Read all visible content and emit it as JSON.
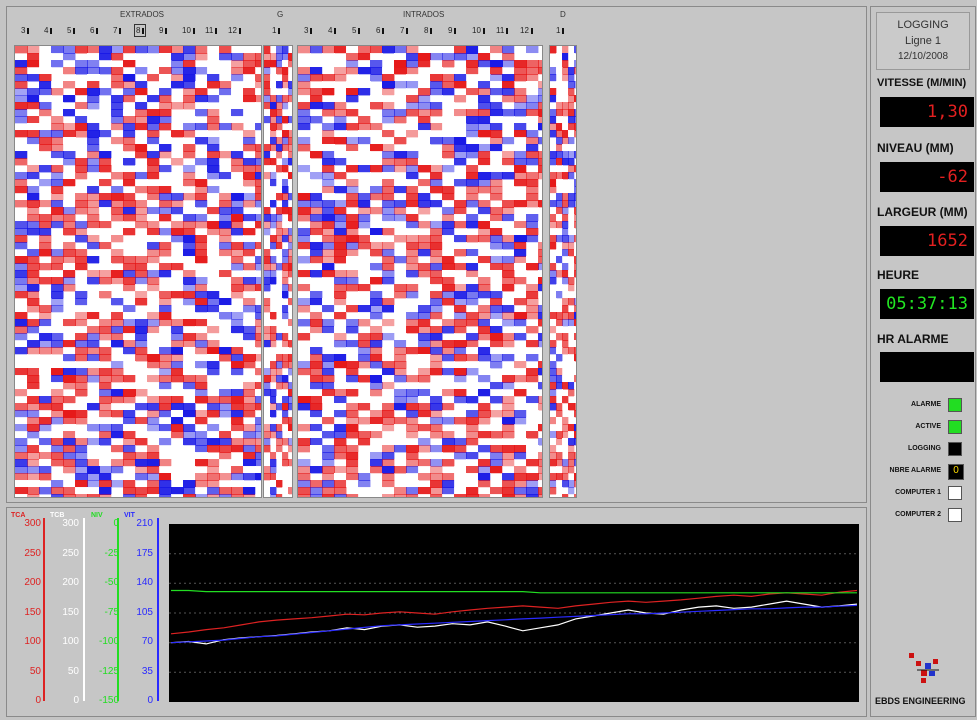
{
  "colors": {
    "tca": "#dd2222",
    "tcb": "#ffffff",
    "niv": "#22dd22",
    "vit": "#2a2aff",
    "lcd_red": "#e32020",
    "lcd_green": "#22e522",
    "chart_bg": "#000000"
  },
  "header": {
    "extrados_title": "EXTRADOS",
    "g_title": "G",
    "intrados_title": "INTRADOS",
    "d_title": "D",
    "extrados_ticks": [
      "3",
      "4",
      "5",
      "6",
      "7",
      "8",
      "9",
      "10",
      "11",
      "12"
    ],
    "g_ticks": [
      "1"
    ],
    "intrados_ticks": [
      "3",
      "4",
      "5",
      "6",
      "7",
      "8",
      "9",
      "10",
      "11",
      "12"
    ],
    "d_ticks": [
      "1"
    ],
    "selected_tick": "8"
  },
  "info": {
    "title": "LOGGING",
    "line": "Ligne 1",
    "date": "12/10/2008"
  },
  "fields": {
    "vitesse_label": "VITESSE (M/MIN)",
    "vitesse_value": "1,30",
    "niveau_label": "NIVEAU (MM)",
    "niveau_value": "-62",
    "largeur_label": "LARGEUR (MM)",
    "largeur_value": "1652",
    "heure_label": "HEURE",
    "heure_value": "05:37:13",
    "hr_alarme_label": "HR ALARME",
    "hr_alarme_value": ""
  },
  "indicators": [
    {
      "label": "ALARME",
      "color": "#22dd22"
    },
    {
      "label": "ACTIVE",
      "color": "#22dd22"
    },
    {
      "label": "LOGGING",
      "color": "#000000"
    },
    {
      "label": "NBRE ALARME",
      "value": "0"
    },
    {
      "label": "COMPUTER 1",
      "color": "#ffffff"
    },
    {
      "label": "COMPUTER 2",
      "color": "#ffffff"
    }
  ],
  "company": "EBDS ENGINEERING",
  "scales": {
    "tca": {
      "title": "TCA",
      "ticks": [
        "300",
        "250",
        "200",
        "150",
        "100",
        "50",
        "0"
      ]
    },
    "tcb": {
      "title": "TCB",
      "ticks": [
        "300",
        "250",
        "200",
        "150",
        "100",
        "50",
        "0"
      ]
    },
    "niv": {
      "title": "NIV",
      "ticks": [
        "0",
        "-25",
        "-50",
        "-75",
        "-100",
        "-125",
        "-150"
      ]
    },
    "vit": {
      "title": "VIT",
      "ticks": [
        "210",
        "175",
        "140",
        "105",
        "70",
        "35",
        "0"
      ]
    }
  },
  "chart_data": {
    "type": "line",
    "series": [
      {
        "name": "TCA",
        "values": [
          115,
          118,
          122,
          125,
          130,
          135,
          138,
          140,
          142,
          145,
          148,
          147,
          150,
          152,
          150,
          148,
          152,
          155,
          158,
          160,
          162,
          160,
          158,
          162,
          165,
          168,
          170,
          168,
          170,
          172,
          175,
          178,
          180,
          178,
          182,
          184,
          182,
          180,
          185,
          188
        ]
      },
      {
        "name": "TCB",
        "values": [
          100,
          102,
          98,
          105,
          108,
          110,
          112,
          115,
          118,
          120,
          125,
          122,
          128,
          130,
          126,
          128,
          132,
          130,
          135,
          128,
          120,
          125,
          130,
          140,
          145,
          150,
          155,
          150,
          148,
          155,
          160,
          162,
          158,
          160,
          165,
          170,
          165,
          160,
          162,
          165
        ]
      },
      {
        "name": "NIV",
        "values": [
          -56,
          -56,
          -57,
          -57,
          -57,
          -57,
          -57,
          -57,
          -57,
          -57,
          -57,
          -57,
          -57,
          -57,
          -57,
          -57,
          -57,
          -57,
          -57,
          -57,
          -57,
          -58,
          -58,
          -58,
          -58,
          -58,
          -58,
          -58,
          -58,
          -58,
          -58,
          -58,
          -58,
          -58,
          -58,
          -58,
          -58,
          -58,
          -58,
          -58
        ]
      },
      {
        "name": "VIT",
        "values": [
          70,
          71,
          72,
          73,
          75,
          77,
          78,
          80,
          82,
          84,
          86,
          88,
          90,
          91,
          92,
          93,
          94,
          95,
          96,
          97,
          98,
          99,
          100,
          101,
          102,
          103,
          104,
          104,
          105,
          106,
          107,
          108,
          109,
          110,
          110,
          111,
          112,
          112,
          113,
          114
        ]
      }
    ]
  }
}
